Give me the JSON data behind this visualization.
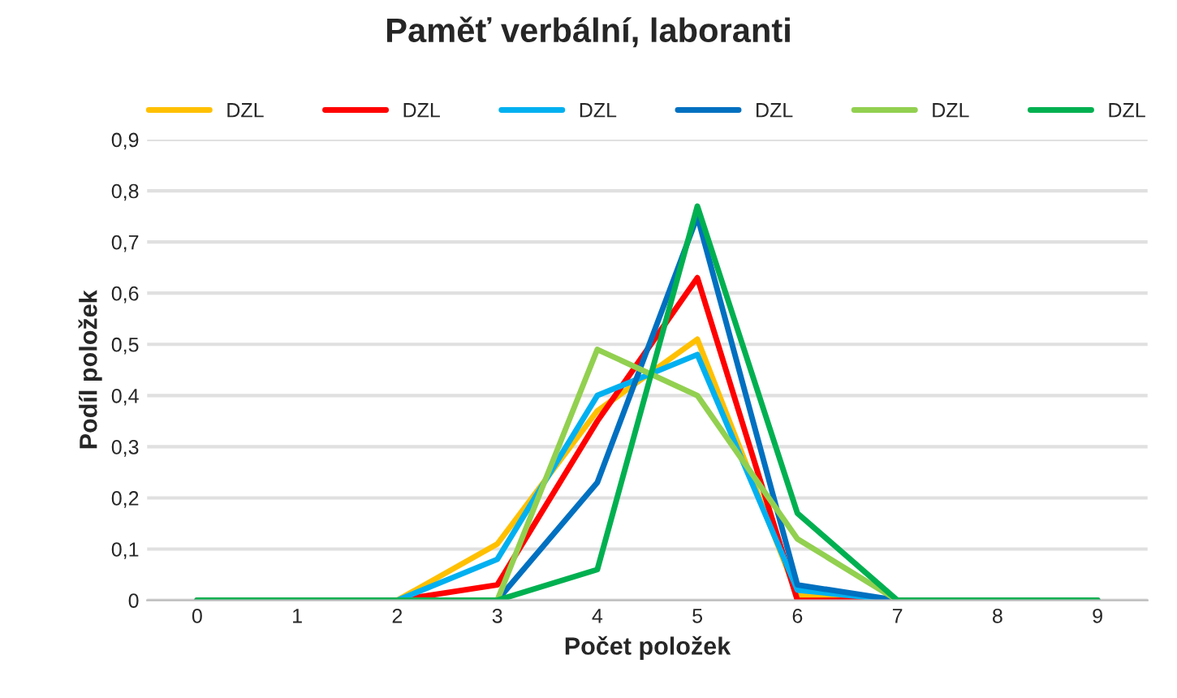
{
  "chart_data": {
    "type": "line",
    "title": "Paměť verbální, laboranti",
    "xlabel": "Počet položek",
    "ylabel": "Podíl položek",
    "x": [
      0,
      1,
      2,
      3,
      4,
      5,
      6,
      7,
      8,
      9
    ],
    "series": [
      {
        "name": "DZL",
        "color": "#ffc000",
        "values": [
          0,
          0,
          0,
          0.11,
          0.37,
          0.51,
          0.01,
          0,
          null,
          null
        ]
      },
      {
        "name": "DZL",
        "color": "#ff0000",
        "values": [
          0,
          0,
          0,
          0.03,
          0.35,
          0.63,
          0,
          0,
          0,
          0
        ]
      },
      {
        "name": "DZL",
        "color": "#00b0f0",
        "values": [
          0,
          0,
          0,
          0.08,
          0.4,
          0.48,
          0.02,
          0,
          0,
          0
        ]
      },
      {
        "name": "DZL",
        "color": "#0070c0",
        "values": [
          0,
          0,
          0,
          0,
          0.23,
          0.75,
          0.03,
          0,
          0,
          0
        ]
      },
      {
        "name": "DZL",
        "color": "#92d050",
        "values": [
          0,
          0,
          0,
          0,
          0.49,
          0.4,
          0.12,
          0,
          0,
          0
        ]
      },
      {
        "name": "DZL",
        "color": "#00b050",
        "values": [
          0,
          0,
          0,
          0,
          0.06,
          0.77,
          0.17,
          0,
          0,
          0
        ]
      }
    ],
    "xlim": [
      -0.5,
      9.5
    ],
    "xticks": [
      0,
      1,
      2,
      3,
      4,
      5,
      6,
      7,
      8,
      9
    ],
    "ylim": [
      0,
      0.9
    ],
    "yticks": [
      {
        "value": 0,
        "label": "0"
      },
      {
        "value": 0.1,
        "label": "0,1"
      },
      {
        "value": 0.2,
        "label": "0,2"
      },
      {
        "value": 0.3,
        "label": "0,3"
      },
      {
        "value": 0.4,
        "label": "0,4"
      },
      {
        "value": 0.5,
        "label": "0,5"
      },
      {
        "value": 0.6,
        "label": "0,6"
      },
      {
        "value": 0.7,
        "label": "0,7"
      },
      {
        "value": 0.8,
        "label": "0,8"
      },
      {
        "value": 0.9,
        "label": "0,9"
      }
    ],
    "grid": "y",
    "legend": "top",
    "marker": "none",
    "line_style": "solid"
  }
}
